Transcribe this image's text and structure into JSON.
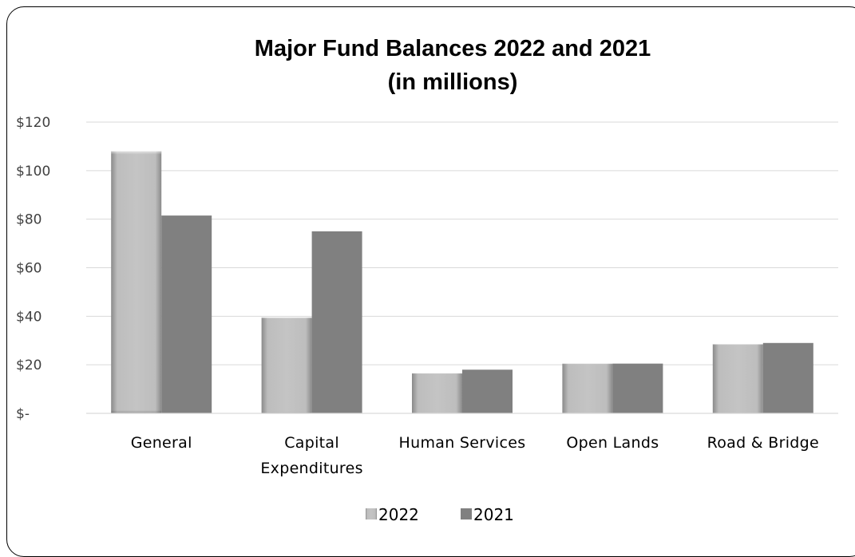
{
  "chart_data": {
    "type": "bar",
    "title": "Major Fund Balances 2022 and 2021",
    "subtitle": "(in millions)",
    "categories": [
      "General",
      "Capital Expenditures",
      "Human Services",
      "Open Lands",
      "Road & Bridge"
    ],
    "category_lines": [
      [
        "General"
      ],
      [
        "Capital",
        "Expenditures"
      ],
      [
        "Human Services"
      ],
      [
        "Open Lands"
      ],
      [
        "Road & Bridge"
      ]
    ],
    "series": [
      {
        "name": "2022",
        "values": [
          108,
          39.5,
          16.5,
          20.5,
          28.5
        ],
        "color": "#b4b4b4"
      },
      {
        "name": "2021",
        "values": [
          81.5,
          75,
          18,
          20.5,
          29
        ],
        "color": "#808080"
      }
    ],
    "ylim": [
      0,
      120
    ],
    "yticks": [
      0,
      20,
      40,
      60,
      80,
      100,
      120
    ],
    "ytick_labels": [
      "$-",
      "$20",
      "$40",
      "$60",
      "$80",
      "$100",
      "$120"
    ],
    "xlabel": "",
    "ylabel": "",
    "grid": true,
    "legend_position": "bottom"
  }
}
